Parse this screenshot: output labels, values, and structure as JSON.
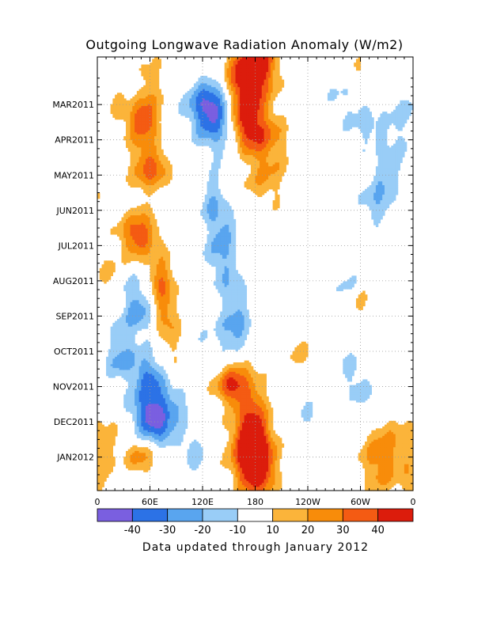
{
  "chart_data": {
    "type": "heatmap",
    "title": "Outgoing Longwave Radiation Anomaly (W/m2)",
    "footer": "Data updated through January 2012",
    "x_tick_labels": [
      "0",
      "60E",
      "120E",
      "180",
      "120W",
      "60W",
      "0"
    ],
    "x_tick_degrees": [
      0,
      60,
      120,
      180,
      240,
      300,
      360
    ],
    "y_tick_labels": [
      "MAR2011",
      "APR2011",
      "MAY2011",
      "JUN2011",
      "JUL2011",
      "AUG2011",
      "SEP2011",
      "OCT2011",
      "NOV2011",
      "DEC2011",
      "JAN2012"
    ],
    "y_tick_months": [
      1,
      2,
      3,
      4,
      5,
      6,
      7,
      8,
      9,
      10,
      11
    ],
    "y_range_months": [
      -0.35,
      11.95
    ],
    "colorbar": {
      "labels": [
        "-40",
        "-30",
        "-20",
        "-10",
        "10",
        "20",
        "30",
        "40"
      ],
      "colors": [
        "#7a5fe0",
        "#2c72e6",
        "#59a5ef",
        "#99cdf7",
        "#ffffff",
        "#fbb43a",
        "#f88c0a",
        "#f45b13",
        "#dc1c0c"
      ]
    },
    "blobs": [
      {
        "lon": 180,
        "t": -0.25,
        "sl": 15,
        "st": 0.45,
        "a": 45
      },
      {
        "lon": 172,
        "t": 0.25,
        "sl": 20,
        "st": 0.5,
        "a": 32
      },
      {
        "lon": 168,
        "t": 1.1,
        "sl": 14,
        "st": 0.7,
        "a": 30
      },
      {
        "lon": 172,
        "t": 1.5,
        "sl": 16,
        "st": 0.55,
        "a": 24
      },
      {
        "lon": 195,
        "t": 1.8,
        "sl": 18,
        "st": 0.5,
        "a": 14
      },
      {
        "lon": 190,
        "t": 2.5,
        "sl": 20,
        "st": 0.5,
        "a": 16
      },
      {
        "lon": 192,
        "t": 3.4,
        "sl": 18,
        "st": 0.4,
        "a": 13
      },
      {
        "lon": 54,
        "t": 1.2,
        "sl": 12,
        "st": 0.5,
        "a": 26
      },
      {
        "lon": 50,
        "t": 1.7,
        "sl": 14,
        "st": 0.5,
        "a": 20
      },
      {
        "lon": 58,
        "t": 0.2,
        "sl": 14,
        "st": 0.5,
        "a": 13
      },
      {
        "lon": 22,
        "t": 0.9,
        "sl": 10,
        "st": 0.5,
        "a": 12
      },
      {
        "lon": 65,
        "t": 2.8,
        "sl": 12,
        "st": 0.4,
        "a": 26
      },
      {
        "lon": 50,
        "t": 2.9,
        "sl": 14,
        "st": 0.4,
        "a": 14
      },
      {
        "lon": 50,
        "t": 4.6,
        "sl": 13,
        "st": 0.5,
        "a": 26
      },
      {
        "lon": 40,
        "t": 4.8,
        "sl": 14,
        "st": 0.4,
        "a": 16
      },
      {
        "lon": 72,
        "t": 5.9,
        "sl": 10,
        "st": 0.6,
        "a": 20
      },
      {
        "lon": 76,
        "t": 6.5,
        "sl": 9,
        "st": 0.6,
        "a": 16
      },
      {
        "lon": 82,
        "t": 7.3,
        "sl": 10,
        "st": 0.4,
        "a": 14
      },
      {
        "lon": 10,
        "t": 5.7,
        "sl": 10,
        "st": 0.4,
        "a": 12
      },
      {
        "lon": 100,
        "t": 8.2,
        "sl": 18,
        "st": 0.5,
        "a": 14
      },
      {
        "lon": 162,
        "t": 8.7,
        "sl": 14,
        "st": 0.7,
        "a": 18
      },
      {
        "lon": 152,
        "t": 9.0,
        "sl": 12,
        "st": 0.35,
        "a": 30
      },
      {
        "lon": 180,
        "t": 9.6,
        "sl": 12,
        "st": 0.6,
        "a": 16
      },
      {
        "lon": 176,
        "t": 10.2,
        "sl": 14,
        "st": 0.6,
        "a": 20
      },
      {
        "lon": 172,
        "t": 10.7,
        "sl": 14,
        "st": 0.5,
        "a": 30
      },
      {
        "lon": 180,
        "t": 11.4,
        "sl": 16,
        "st": 0.6,
        "a": 40
      },
      {
        "lon": 185,
        "t": 11.0,
        "sl": 12,
        "st": 0.6,
        "a": 18
      },
      {
        "lon": 50,
        "t": 11.05,
        "sl": 12,
        "st": 0.35,
        "a": 24
      },
      {
        "lon": 10,
        "t": 10.5,
        "sl": 12,
        "st": 0.5,
        "a": 12
      },
      {
        "lon": 0,
        "t": 11.7,
        "sl": 10,
        "st": 0.5,
        "a": 14
      },
      {
        "lon": 330,
        "t": 10.7,
        "sl": 20,
        "st": 0.7,
        "a": 20
      },
      {
        "lon": 320,
        "t": 11.4,
        "sl": 14,
        "st": 0.5,
        "a": 14
      },
      {
        "lon": 355,
        "t": 3.3,
        "sl": 12,
        "st": 0.5,
        "a": 12
      },
      {
        "lon": 295,
        "t": 0.2,
        "sl": 12,
        "st": 0.5,
        "a": 12
      },
      {
        "lon": 298,
        "t": 6.7,
        "sl": 10,
        "st": 0.4,
        "a": 12
      },
      {
        "lon": 230,
        "t": 8.0,
        "sl": 10,
        "st": 0.4,
        "a": 12
      },
      {
        "lon": 272,
        "t": 8.8,
        "sl": 10,
        "st": 0.5,
        "a": 11
      },
      {
        "lon": 125,
        "t": 0.8,
        "sl": 18,
        "st": 0.5,
        "a": -20
      },
      {
        "lon": 130,
        "t": 1.4,
        "sl": 16,
        "st": 0.5,
        "a": -25
      },
      {
        "lon": 140,
        "t": 1.2,
        "sl": 20,
        "st": 0.6,
        "a": -12
      },
      {
        "lon": 150,
        "t": 2.4,
        "sl": 14,
        "st": 0.5,
        "a": -12
      },
      {
        "lon": 130,
        "t": 3.7,
        "sl": 10,
        "st": 0.5,
        "a": -18
      },
      {
        "lon": 145,
        "t": 4.5,
        "sl": 12,
        "st": 0.5,
        "a": -16
      },
      {
        "lon": 138,
        "t": 5.2,
        "sl": 12,
        "st": 0.5,
        "a": -14
      },
      {
        "lon": 150,
        "t": 6.0,
        "sl": 12,
        "st": 0.5,
        "a": -14
      },
      {
        "lon": 160,
        "t": 7.2,
        "sl": 12,
        "st": 0.6,
        "a": -18
      },
      {
        "lon": 150,
        "t": 7.7,
        "sl": 16,
        "st": 0.5,
        "a": -14
      },
      {
        "lon": 45,
        "t": 0.6,
        "sl": 10,
        "st": 0.4,
        "a": -12
      },
      {
        "lon": 40,
        "t": 6.5,
        "sl": 12,
        "st": 0.5,
        "a": -14
      },
      {
        "lon": 50,
        "t": 7.0,
        "sl": 12,
        "st": 0.5,
        "a": -16
      },
      {
        "lon": 28,
        "t": 7.8,
        "sl": 10,
        "st": 0.5,
        "a": -12
      },
      {
        "lon": 22,
        "t": 8.3,
        "sl": 12,
        "st": 0.4,
        "a": -14
      },
      {
        "lon": 55,
        "t": 8.6,
        "sl": 14,
        "st": 0.45,
        "a": -22
      },
      {
        "lon": 65,
        "t": 9.0,
        "sl": 14,
        "st": 0.4,
        "a": -18
      },
      {
        "lon": 62,
        "t": 9.7,
        "sl": 16,
        "st": 0.35,
        "a": -38
      },
      {
        "lon": 70,
        "t": 10.3,
        "sl": 16,
        "st": 0.35,
        "a": -26
      },
      {
        "lon": 110,
        "t": 8.0,
        "sl": 12,
        "st": 0.4,
        "a": -16
      },
      {
        "lon": 110,
        "t": 10.9,
        "sl": 10,
        "st": 0.5,
        "a": -14
      },
      {
        "lon": 95,
        "t": 9.5,
        "sl": 12,
        "st": 0.4,
        "a": -12
      },
      {
        "lon": 350,
        "t": 1.3,
        "sl": 14,
        "st": 0.5,
        "a": -12
      },
      {
        "lon": 340,
        "t": 2.8,
        "sl": 14,
        "st": 0.6,
        "a": -14
      },
      {
        "lon": 325,
        "t": 3.4,
        "sl": 12,
        "st": 0.5,
        "a": -12
      },
      {
        "lon": 315,
        "t": 3.9,
        "sl": 12,
        "st": 0.4,
        "a": -12
      },
      {
        "lon": 285,
        "t": 0.8,
        "sl": 16,
        "st": 0.5,
        "a": -12
      },
      {
        "lon": 310,
        "t": 1.7,
        "sl": 16,
        "st": 0.5,
        "a": -12
      },
      {
        "lon": 280,
        "t": 8.5,
        "sl": 14,
        "st": 0.5,
        "a": -14
      },
      {
        "lon": 300,
        "t": 9.1,
        "sl": 12,
        "st": 0.4,
        "a": -12
      },
      {
        "lon": 285,
        "t": 6.2,
        "sl": 10,
        "st": 0.4,
        "a": -11
      },
      {
        "lon": 240,
        "t": 9.8,
        "sl": 8,
        "st": 0.4,
        "a": -10.5
      }
    ]
  }
}
